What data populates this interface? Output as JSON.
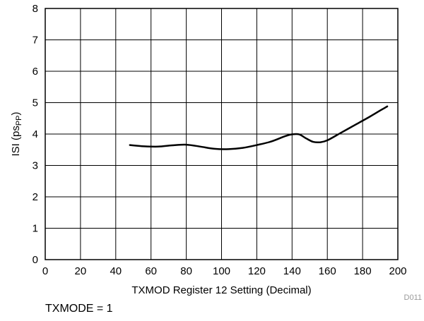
{
  "chart_data": {
    "type": "line",
    "title": "",
    "xlabel": "TXMOD Register 12 Setting (Decimal)",
    "ylabel_main": "ISI (ps",
    "ylabel_sub": "PP",
    "ylabel_close": ")",
    "xlim": [
      0,
      200
    ],
    "ylim": [
      0,
      8
    ],
    "xticks": [
      0,
      20,
      40,
      60,
      80,
      100,
      120,
      140,
      160,
      180,
      200
    ],
    "yticks": [
      0,
      1,
      2,
      3,
      4,
      5,
      6,
      7,
      8
    ],
    "grid": true,
    "legend": "none",
    "series": [
      {
        "color": "#000000",
        "x": [
          48,
          56,
          64,
          72,
          80,
          88,
          96,
          104,
          112,
          120,
          128,
          136,
          140,
          144,
          148,
          152,
          156,
          160,
          168,
          176,
          184,
          190,
          194
        ],
        "y": [
          3.65,
          3.61,
          3.6,
          3.64,
          3.66,
          3.6,
          3.53,
          3.52,
          3.56,
          3.65,
          3.76,
          3.93,
          3.99,
          3.99,
          3.86,
          3.75,
          3.74,
          3.8,
          4.05,
          4.3,
          4.55,
          4.75,
          4.88
        ]
      }
    ]
  },
  "figure_id": "D011",
  "footnote": "TXMODE = 1"
}
